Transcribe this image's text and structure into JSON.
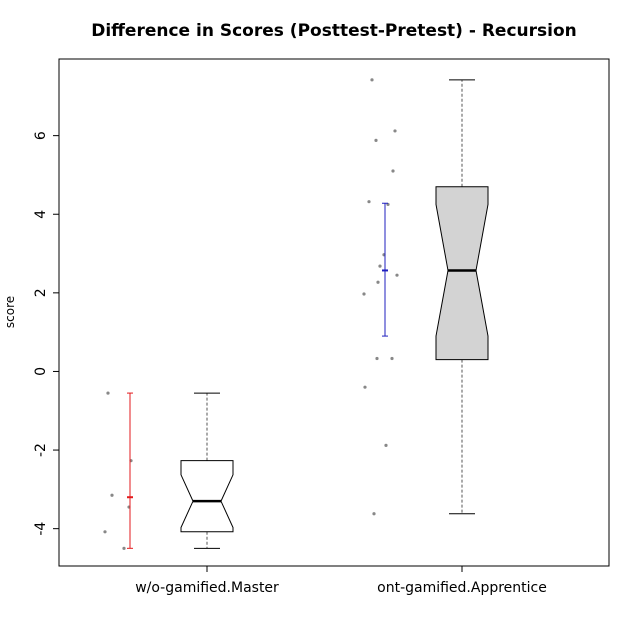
{
  "chart_data": {
    "type": "boxplot",
    "title": "Difference in Scores (Posttest-Pretest) - Recursion",
    "xlabel": "",
    "ylabel": "score",
    "ylim": [
      -4.95,
      7.95
    ],
    "yticks": [
      -4,
      -2,
      0,
      2,
      4,
      6
    ],
    "ytick_labels": [
      "-4",
      "-2",
      "0",
      "2",
      "4",
      "6"
    ],
    "categories": [
      "w/o-gamified.Master",
      "ont-gamified.Apprentice"
    ],
    "grid": false,
    "notched": true,
    "boxes": [
      {
        "name": "w/o-gamified.Master",
        "whisker_low": -4.5,
        "q1": -4.08,
        "median": -3.3,
        "q3": -2.27,
        "whisker_high": -0.55,
        "notch_low": -3.97,
        "notch_high": -2.63,
        "fill": "#ffffff",
        "points": [
          -0.55,
          -2.27,
          -3.15,
          -3.45,
          -4.08,
          -4.5
        ],
        "point_color": "#888888",
        "mean": -3.2,
        "error_low": -4.5,
        "error_high": -0.55,
        "error_color": "#e31a1c"
      },
      {
        "name": "ont-gamified.Apprentice",
        "whisker_low": -3.62,
        "q1": 0.3,
        "median": 2.57,
        "q3": 4.7,
        "whisker_high": 7.42,
        "notch_low": 0.9,
        "notch_high": 4.25,
        "fill": "#d3d3d3",
        "points": [
          7.42,
          6.12,
          5.88,
          5.1,
          4.32,
          4.25,
          2.97,
          2.68,
          2.45,
          2.27,
          1.97,
          0.33,
          0.33,
          -0.4,
          -1.88,
          -3.62
        ],
        "point_color": "#888888",
        "mean": 2.57,
        "error_low": 0.9,
        "error_high": 4.28,
        "error_color": "#1f1fbf"
      }
    ]
  }
}
